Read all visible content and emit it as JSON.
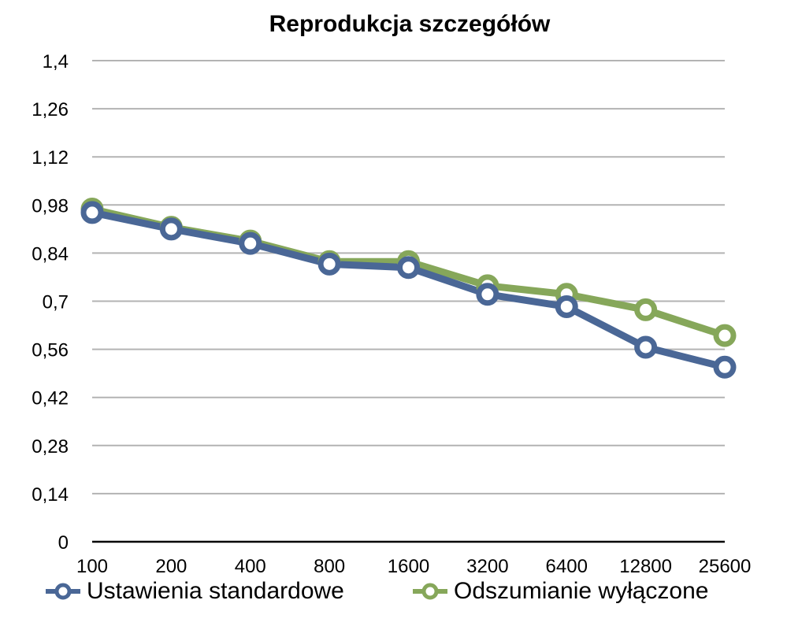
{
  "chart_data": {
    "type": "line",
    "title": "Reprodukcja szczegółów",
    "xlabel": "",
    "ylabel": "",
    "categories": [
      "100",
      "200",
      "400",
      "800",
      "1600",
      "3200",
      "6400",
      "12800",
      "25600"
    ],
    "y_ticks": [
      "0",
      "0,14",
      "0,28",
      "0,42",
      "0,56",
      "0,7",
      "0,84",
      "0,98",
      "1,12",
      "1,26",
      "1,4"
    ],
    "ylim": [
      0,
      1.4
    ],
    "grid": true,
    "legend_position": "bottom",
    "series": [
      {
        "name": "Odszumianie wyłączone",
        "color": "#86a75a",
        "values": [
          0.968,
          0.915,
          0.875,
          0.815,
          0.815,
          0.745,
          0.72,
          0.675,
          0.6
        ]
      },
      {
        "name": "Ustawienia standardowe",
        "color": "#4a6796",
        "values": [
          0.958,
          0.91,
          0.868,
          0.808,
          0.798,
          0.72,
          0.684,
          0.566,
          0.508
        ]
      }
    ]
  }
}
